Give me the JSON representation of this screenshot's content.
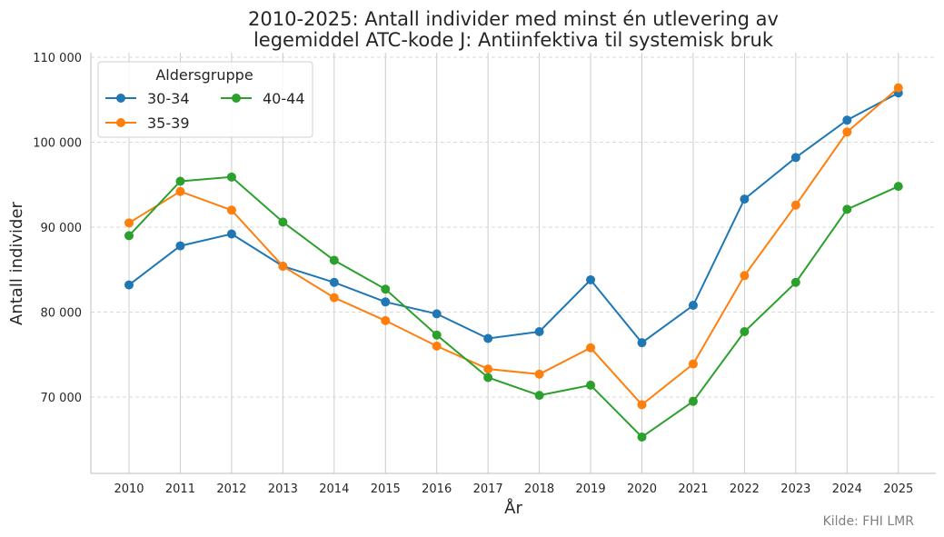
{
  "chart_data": {
    "type": "line",
    "title_lines": [
      "2010-2025: Antall individer med minst én utlevering av",
      "legemiddel ATC-kode J: Antiinfektiva til systemisk bruk"
    ],
    "xlabel": "År",
    "ylabel": "Antall individer",
    "x": [
      2010,
      2011,
      2012,
      2013,
      2014,
      2015,
      2016,
      2017,
      2018,
      2019,
      2020,
      2021,
      2022,
      2023,
      2024,
      2025
    ],
    "x_tick_labels": [
      "2010",
      "2011",
      "2012",
      "2013",
      "2014",
      "2015",
      "2016",
      "2017",
      "2018",
      "2019",
      "2020",
      "2021",
      "2022",
      "2023",
      "2024",
      "2025"
    ],
    "ylim": [
      61000,
      110500
    ],
    "y_ticks": [
      70000,
      80000,
      90000,
      100000,
      110000
    ],
    "y_tick_labels": [
      "70 000",
      "80 000",
      "90 000",
      "100 000",
      "110 000"
    ],
    "grid": true,
    "legend": {
      "title": "Aldersgruppe",
      "placement": "top-left"
    },
    "series": [
      {
        "name": "30-34",
        "color": "#1f77b4",
        "values": [
          83200,
          87800,
          89200,
          85400,
          83500,
          81200,
          79800,
          76900,
          77700,
          83800,
          76400,
          80800,
          93300,
          98200,
          102600,
          105800
        ]
      },
      {
        "name": "35-39",
        "color": "#ff7f0e",
        "values": [
          90500,
          94200,
          92000,
          85400,
          81700,
          79000,
          76000,
          73300,
          72700,
          75800,
          69100,
          73900,
          84300,
          92600,
          101200,
          106400
        ]
      },
      {
        "name": "40-44",
        "color": "#2ca02c",
        "values": [
          89000,
          95400,
          95900,
          90600,
          86100,
          82700,
          77300,
          72300,
          70200,
          71400,
          65300,
          69500,
          77700,
          83500,
          92100,
          94800
        ]
      }
    ],
    "source": "Kilde: FHI LMR"
  }
}
